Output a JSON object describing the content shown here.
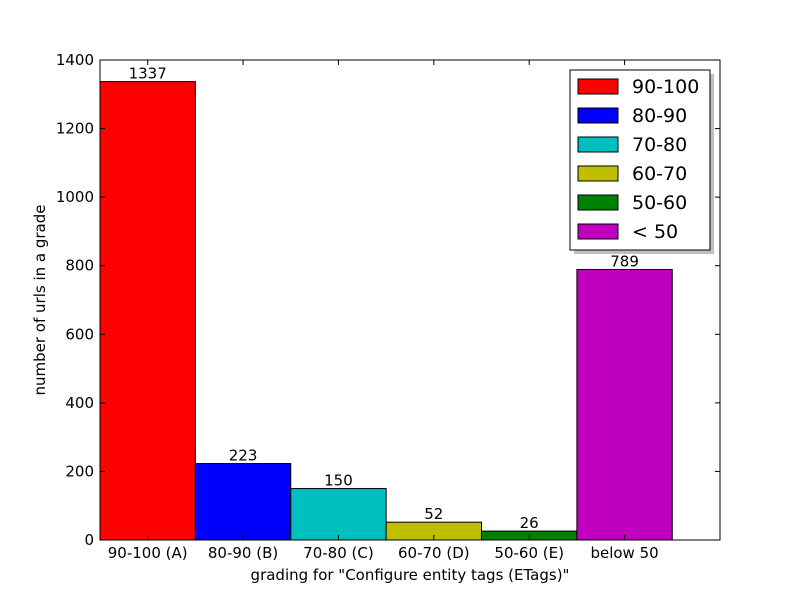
{
  "chart_data": {
    "type": "bar",
    "categories": [
      "90-100 (A)",
      "80-90 (B)",
      "70-80 (C)",
      "60-70 (D)",
      "50-60 (E)",
      "below 50"
    ],
    "values": [
      1337,
      223,
      150,
      52,
      26,
      789
    ],
    "value_labels": [
      "1337",
      "223",
      "150",
      "52",
      "26",
      "789"
    ],
    "colors": [
      "#ff0000",
      "#0000ff",
      "#00bfbf",
      "#bfbf00",
      "#008000",
      "#bf00bf"
    ],
    "legend": {
      "placement": "top-right",
      "entries": [
        {
          "label": "90-100",
          "color": "#ff0000"
        },
        {
          "label": "80-90",
          "color": "#0000ff"
        },
        {
          "label": "70-80",
          "color": "#00bfbf"
        },
        {
          "label": "60-70",
          "color": "#bfbf00"
        },
        {
          "label": "50-60",
          "color": "#008000"
        },
        {
          "label": "< 50",
          "color": "#bf00bf"
        }
      ]
    },
    "xlabel": "grading for \"Configure entity tags (ETags)\"",
    "ylabel": "number of urls in a grade",
    "ylim": [
      0,
      1400
    ],
    "yticks": [
      0,
      200,
      400,
      600,
      800,
      1000,
      1200,
      1400
    ],
    "ytick_labels": [
      "0",
      "200",
      "400",
      "600",
      "800",
      "1000",
      "1200",
      "1400"
    ],
    "grid": false
  }
}
